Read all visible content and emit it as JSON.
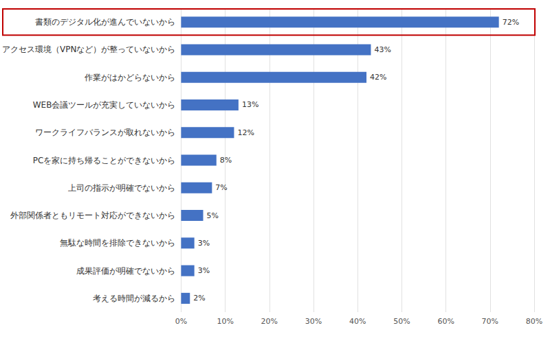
{
  "chart_data": {
    "type": "bar",
    "orientation": "horizontal",
    "categories": [
      "書類のデジタル化が進んでいないから",
      "アクセス環境（VPNなど）が整っていないから",
      "作業がはかどらないから",
      "WEB会議ツールが充実していないから",
      "ワークライフバランスが取れないから",
      "PCを家に持ち帰ることができないから",
      "上司の指示が明確でないから",
      "外部関係者ともリモート対応ができないから",
      "無駄な時間を排除できないから",
      "成果評価が明確でないから",
      "考える時間が減るから"
    ],
    "values": [
      72,
      43,
      42,
      13,
      12,
      8,
      7,
      5,
      3,
      3,
      2
    ],
    "value_labels": [
      "72%",
      "43%",
      "42%",
      "13%",
      "12%",
      "8%",
      "7%",
      "5%",
      "3%",
      "3%",
      "2%"
    ],
    "color": "#4472c4",
    "xlim": [
      0,
      80
    ],
    "xticks": [
      {
        "value": 0,
        "label": "0%"
      },
      {
        "value": 10,
        "label": "10%"
      },
      {
        "value": 20,
        "label": "20%"
      },
      {
        "value": 30,
        "label": "30%"
      },
      {
        "value": 40,
        "label": "40%"
      },
      {
        "value": 50,
        "label": "50%"
      },
      {
        "value": 60,
        "label": "60%"
      },
      {
        "value": 70,
        "label": "70%"
      },
      {
        "value": 80,
        "label": "80%"
      }
    ],
    "grid": true,
    "data_labels": true
  }
}
